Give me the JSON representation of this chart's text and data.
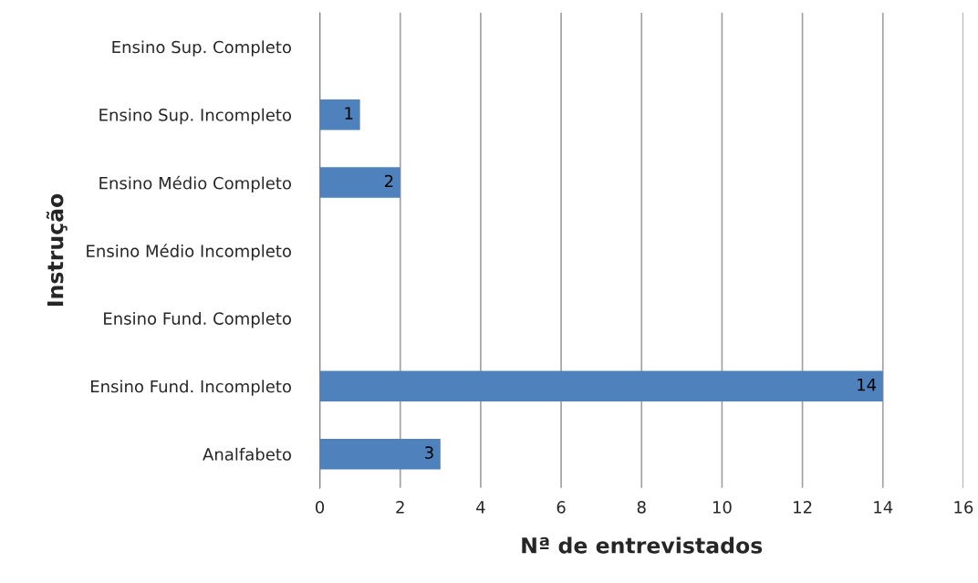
{
  "chart_data": {
    "type": "bar",
    "orientation": "horizontal",
    "xlabel": "Nª de entrevistados",
    "ylabel": "Instrução",
    "categories": [
      "Ensino Sup. Completo",
      "Ensino Sup. Incompleto",
      "Ensino Médio Completo",
      "Ensino Médio Incompleto",
      "Ensino Fund. Completo",
      "Ensino Fund. Incompleto",
      "Analfabeto"
    ],
    "values": [
      0,
      1,
      2,
      0,
      0,
      14,
      3
    ],
    "value_labels": [
      null,
      "1",
      "2",
      null,
      null,
      "14",
      "3"
    ],
    "color": "#4f81bd",
    "xlim": [
      0,
      16
    ],
    "xticks": [
      0,
      2,
      4,
      6,
      8,
      10,
      12,
      14,
      16
    ],
    "grid": "x",
    "legend": false
  }
}
